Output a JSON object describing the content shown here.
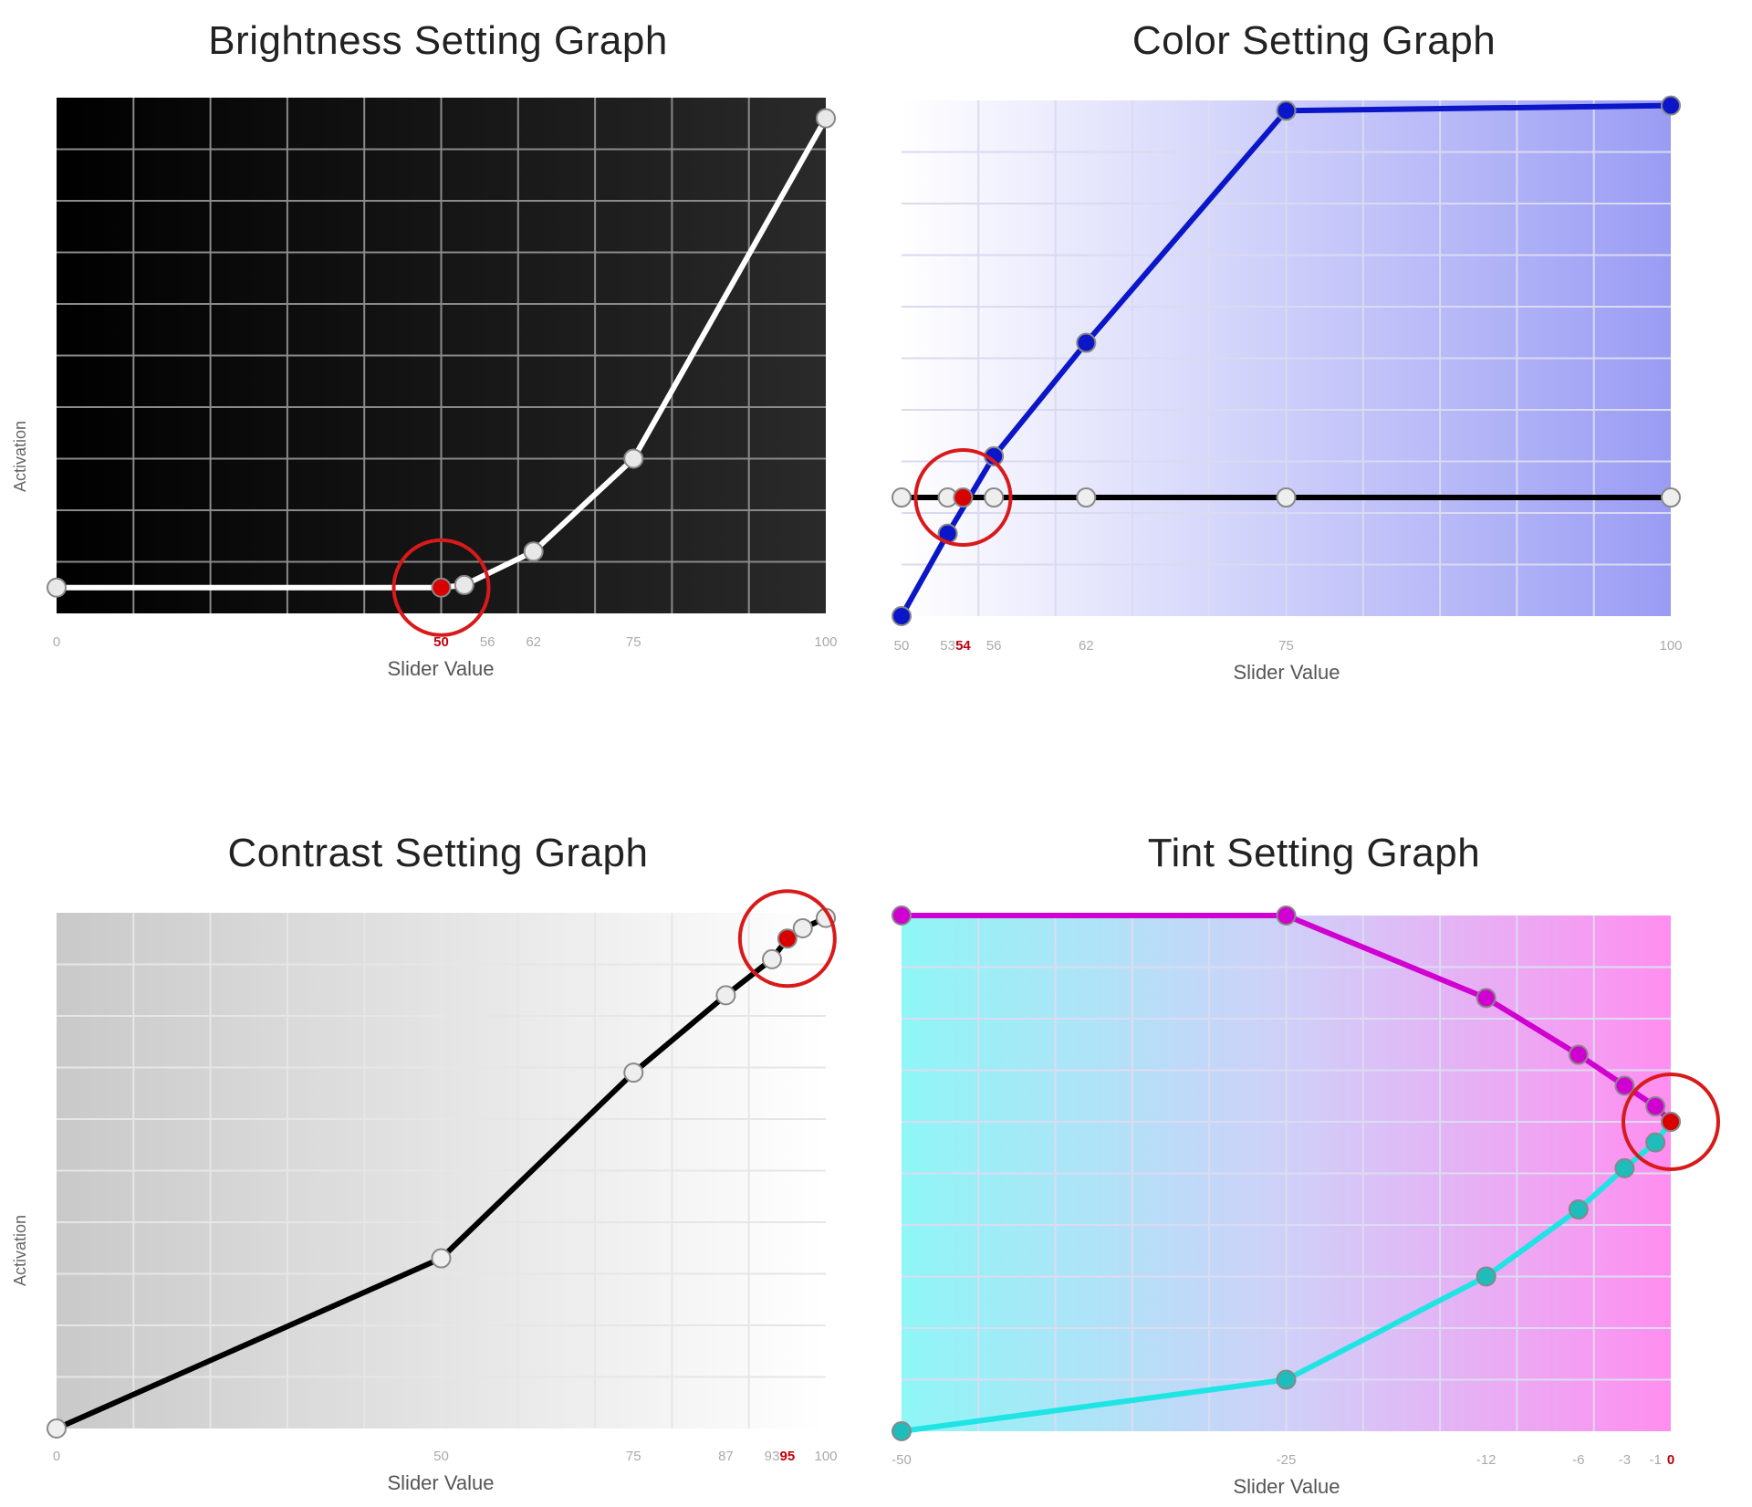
{
  "chart_data": [
    {
      "id": "brightness",
      "type": "line",
      "title": "Brightness Setting Graph",
      "xlabel": "Slider Value",
      "ylabel": "Activation",
      "x_ticks": [
        "0",
        "50",
        "56",
        "62",
        "75",
        "100"
      ],
      "highlight_tick": "50",
      "xlim": [
        0,
        100
      ],
      "ylim": [
        0,
        100
      ],
      "background": "dark",
      "line_color": "#ffffff",
      "point_color": "#e8e8e8",
      "highlight_color": "#d90000",
      "series": [
        {
          "x": [
            0,
            50,
            53,
            62,
            75,
            100
          ],
          "y": [
            5,
            5,
            5.5,
            12,
            30,
            96
          ]
        }
      ],
      "highlight_x": 50
    },
    {
      "id": "color",
      "type": "line",
      "title": "Color Setting Graph",
      "xlabel": "Slider Value",
      "ylabel": "",
      "x_ticks": [
        "50",
        "53",
        "54",
        "56",
        "62",
        "75",
        "100"
      ],
      "highlight_tick": "54",
      "xlim": [
        50,
        100
      ],
      "ylim": [
        0,
        100
      ],
      "background": "blue-gradient",
      "line_color": "#0a16c8",
      "point_color": "#1a28d0",
      "highlight_color": "#d90000",
      "series": [
        {
          "x": [
            50,
            53,
            56,
            62,
            75,
            100
          ],
          "y": [
            0,
            16,
            31,
            53,
            98,
            99
          ]
        },
        {
          "x": [
            50,
            53,
            54,
            56,
            62,
            75,
            100
          ],
          "y": [
            23,
            23,
            23,
            23,
            23,
            23,
            23
          ]
        }
      ],
      "series_colors": [
        "#0a16c8",
        "#000000"
      ],
      "highlight_x": 54
    },
    {
      "id": "contrast",
      "type": "line",
      "title": "Contrast Setting Graph",
      "xlabel": "Slider Value",
      "ylabel": "Activation",
      "x_ticks": [
        "0",
        "50",
        "75",
        "87",
        "93",
        "95",
        "100"
      ],
      "highlight_tick": "95",
      "xlim": [
        0,
        100
      ],
      "ylim": [
        0,
        100
      ],
      "background": "gray-gradient",
      "line_color": "#000000",
      "point_color": "#eeeeee",
      "highlight_color": "#d90000",
      "series": [
        {
          "x": [
            0,
            50,
            75,
            87,
            93,
            95,
            97,
            100
          ],
          "y": [
            0,
            33,
            69,
            84,
            91,
            95,
            97,
            99
          ]
        }
      ],
      "highlight_x": 95
    },
    {
      "id": "tint",
      "type": "line",
      "title": "Tint Setting Graph",
      "xlabel": "Slider Value",
      "ylabel": "",
      "x_ticks": [
        "-50",
        "-25",
        "-12",
        "-6",
        "-3",
        "-1",
        "0"
      ],
      "highlight_tick": "0",
      "xlim": [
        -50,
        0
      ],
      "ylim": [
        0,
        100
      ],
      "background": "cyan-magenta-gradient",
      "line_color": "#d000d0",
      "point_color": "#d000d0",
      "highlight_color": "#d90000",
      "series": [
        {
          "x": [
            -50,
            -25,
            -12,
            -6,
            -3,
            -1,
            0
          ],
          "y": [
            100,
            100,
            84,
            73,
            67,
            63,
            60
          ]
        },
        {
          "x": [
            -50,
            -25,
            -12,
            -6,
            -3,
            -1,
            0
          ],
          "y": [
            0,
            10,
            30,
            43,
            51,
            56,
            60
          ]
        }
      ],
      "series_colors": [
        "#d000d0",
        "#1fe4e4"
      ],
      "highlight_x": 0
    }
  ]
}
